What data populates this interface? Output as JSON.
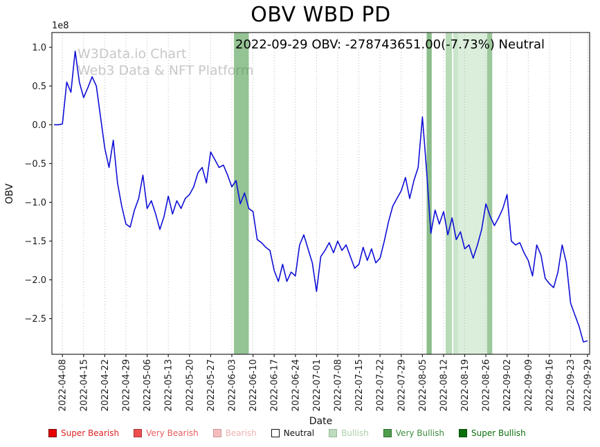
{
  "header": {
    "title": "OBV WBD PD",
    "annotation": "2022-09-29 OBV: -278743651.00(-7.73%) Neutral"
  },
  "watermark": {
    "line1": "W3Data.io Chart",
    "line2": "Web3 Data & NFT Platform"
  },
  "chart_data": {
    "type": "line",
    "title": "OBV WBD PD",
    "xlabel": "Date",
    "ylabel": "OBV",
    "y_offset_label": "1e8",
    "y_unit": 100000000,
    "ylim": [
      -2.96,
      1.19
    ],
    "grid": "vertical-dotted",
    "legend_position": "bottom",
    "line_color": "#0e0ed6",
    "latest": {
      "date": "2022-09-29",
      "obv": -278743651.0,
      "change_pct": "-7.73%",
      "signal": "Neutral"
    },
    "y_tick_values": [
      1.0,
      0.5,
      0.0,
      -0.5,
      -1.0,
      -1.5,
      -2.0,
      -2.5
    ],
    "y_tick_labels": [
      "1.0",
      "0.5",
      "0.0",
      "−0.5",
      "−1.0",
      "−1.5",
      "−2.0",
      "−2.5"
    ],
    "x_tick_indices": [
      2,
      7,
      12,
      17,
      22,
      27,
      32,
      37,
      42,
      47,
      52,
      57,
      62,
      67,
      72,
      77,
      82,
      87,
      92,
      97,
      102,
      107,
      112,
      117,
      122,
      126
    ],
    "x_tick_labels": [
      "2022-04-08",
      "2022-04-15",
      "2022-04-22",
      "2022-04-29",
      "2022-05-06",
      "2022-05-13",
      "2022-05-20",
      "2022-05-27",
      "2022-06-03",
      "2022-06-10",
      "2022-06-17",
      "2022-06-24",
      "2022-07-01",
      "2022-07-08",
      "2022-07-15",
      "2022-07-22",
      "2022-07-29",
      "2022-08-05",
      "2022-08-12",
      "2022-08-19",
      "2022-08-26",
      "2022-09-02",
      "2022-09-09",
      "2022-09-16",
      "2022-09-23",
      "2022-09-29"
    ],
    "values_1e8": [
      0.0,
      0.0,
      0.01,
      0.55,
      0.42,
      0.95,
      0.55,
      0.35,
      0.48,
      0.62,
      0.5,
      0.1,
      -0.3,
      -0.55,
      -0.2,
      -0.75,
      -1.05,
      -1.28,
      -1.32,
      -1.1,
      -0.95,
      -0.65,
      -1.08,
      -0.98,
      -1.15,
      -1.35,
      -1.18,
      -0.92,
      -1.15,
      -0.98,
      -1.08,
      -0.95,
      -0.9,
      -0.8,
      -0.62,
      -0.55,
      -0.75,
      -0.35,
      -0.45,
      -0.55,
      -0.52,
      -0.65,
      -0.8,
      -0.72,
      -1.02,
      -0.88,
      -1.08,
      -1.12,
      -1.48,
      -1.52,
      -1.58,
      -1.62,
      -1.88,
      -2.02,
      -1.8,
      -2.02,
      -1.9,
      -1.95,
      -1.55,
      -1.42,
      -1.6,
      -1.78,
      -2.15,
      -1.7,
      -1.62,
      -1.52,
      -1.65,
      -1.5,
      -1.62,
      -1.55,
      -1.7,
      -1.85,
      -1.8,
      -1.58,
      -1.75,
      -1.6,
      -1.78,
      -1.72,
      -1.5,
      -1.25,
      -1.05,
      -0.95,
      -0.85,
      -0.68,
      -0.95,
      -0.72,
      -0.55,
      0.1,
      -0.6,
      -1.4,
      -1.1,
      -1.28,
      -1.12,
      -1.42,
      -1.2,
      -1.48,
      -1.38,
      -1.6,
      -1.55,
      -1.72,
      -1.55,
      -1.35,
      -1.02,
      -1.18,
      -1.3,
      -1.2,
      -1.08,
      -0.9,
      -1.5,
      -1.55,
      -1.52,
      -1.65,
      -1.75,
      -1.95,
      -1.55,
      -1.68,
      -1.98,
      -2.05,
      -2.1,
      -1.9,
      -1.55,
      -1.78,
      -2.3,
      -2.45,
      -2.6,
      -2.8,
      -2.787
    ],
    "bands": [
      {
        "signal": "very-bullish",
        "start": 42.5,
        "end": 46.0,
        "color": "rgba(60,145,60,0.55)"
      },
      {
        "signal": "very-bullish",
        "start": 88.0,
        "end": 89.2,
        "color": "rgba(60,145,60,0.60)"
      },
      {
        "signal": "bullish",
        "start": 92.5,
        "end": 94.0,
        "color": "rgba(125,190,125,0.55)"
      },
      {
        "signal": "bullish",
        "start": 94.3,
        "end": 95.5,
        "color": "rgba(125,190,125,0.40)"
      },
      {
        "signal": "bullish",
        "start": 95.5,
        "end": 102.3,
        "color": "rgba(160,210,160,0.38)"
      },
      {
        "signal": "very-bullish",
        "start": 102.3,
        "end": 103.5,
        "color": "rgba(60,145,60,0.50)"
      }
    ]
  },
  "legend": {
    "items": [
      {
        "key": "super-bearish",
        "label": "Super Bearish",
        "swatch": "#e60000",
        "text_color": "#dd2222",
        "border": "#7a0000"
      },
      {
        "key": "very-bearish",
        "label": "Very Bearish",
        "swatch": "#ee4f4f",
        "text_color": "#e85c5c",
        "border": "#aa3333"
      },
      {
        "key": "bearish",
        "label": "Bearish",
        "swatch": "#f6bcbc",
        "text_color": "#eeb0b0",
        "border": "#cc9999"
      },
      {
        "key": "neutral",
        "label": "Neutral",
        "swatch": "#ffffff",
        "text_color": "#111111",
        "border": "#111111"
      },
      {
        "key": "bullish",
        "label": "Bullish",
        "swatch": "#bddcbd",
        "text_color": "#a9cfa9",
        "border": "#99bb99"
      },
      {
        "key": "very-bullish",
        "label": "Very Bullish",
        "swatch": "#4d9d4d",
        "text_color": "#3c8c3c",
        "border": "#2f6f2f"
      },
      {
        "key": "super-bullish",
        "label": "Super Bullish",
        "swatch": "#0b6d0b",
        "text_color": "#0b6d0b",
        "border": "#044d04"
      }
    ]
  }
}
